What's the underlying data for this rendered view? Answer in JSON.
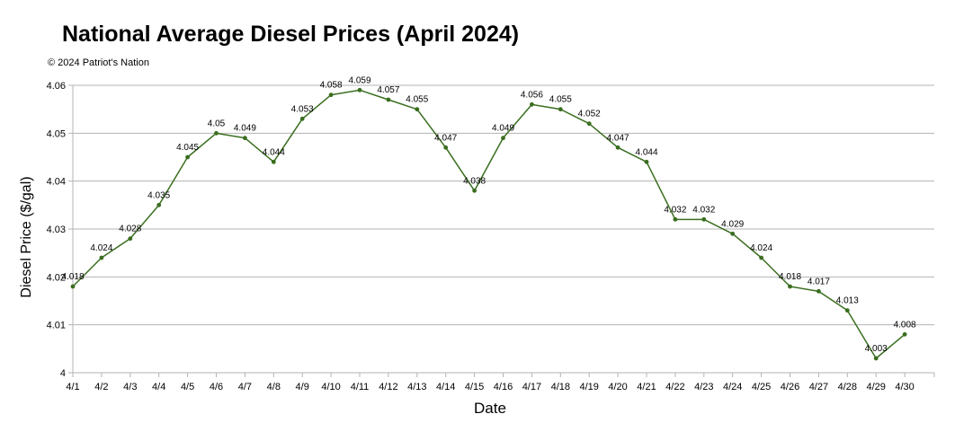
{
  "chart_data": {
    "type": "line",
    "title": "National Average Diesel Prices (April 2024)",
    "subtitle": "© 2024 Patriot's Nation",
    "xlabel": "Date",
    "ylabel": "Diesel Price ($/gal)",
    "ylim": [
      4,
      4.06
    ],
    "yticks": [
      "4",
      "4.01",
      "4.02",
      "4.03",
      "4.04",
      "4.05",
      "4.06"
    ],
    "grid": true,
    "line_color": "#3a6e1f",
    "categories": [
      "4/1",
      "4/2",
      "4/3",
      "4/4",
      "4/5",
      "4/6",
      "4/7",
      "4/8",
      "4/9",
      "4/10",
      "4/11",
      "4/12",
      "4/13",
      "4/14",
      "4/15",
      "4/16",
      "4/17",
      "4/18",
      "4/19",
      "4/20",
      "4/21",
      "4/22",
      "4/23",
      "4/24",
      "4/25",
      "4/26",
      "4/27",
      "4/28",
      "4/29",
      "4/30"
    ],
    "values": [
      4.018,
      4.024,
      4.028,
      4.035,
      4.045,
      4.05,
      4.049,
      4.044,
      4.053,
      4.058,
      4.059,
      4.057,
      4.055,
      4.047,
      4.038,
      4.049,
      4.056,
      4.055,
      4.052,
      4.047,
      4.044,
      4.032,
      4.032,
      4.029,
      4.024,
      4.018,
      4.017,
      4.013,
      4.003,
      4.008
    ]
  }
}
